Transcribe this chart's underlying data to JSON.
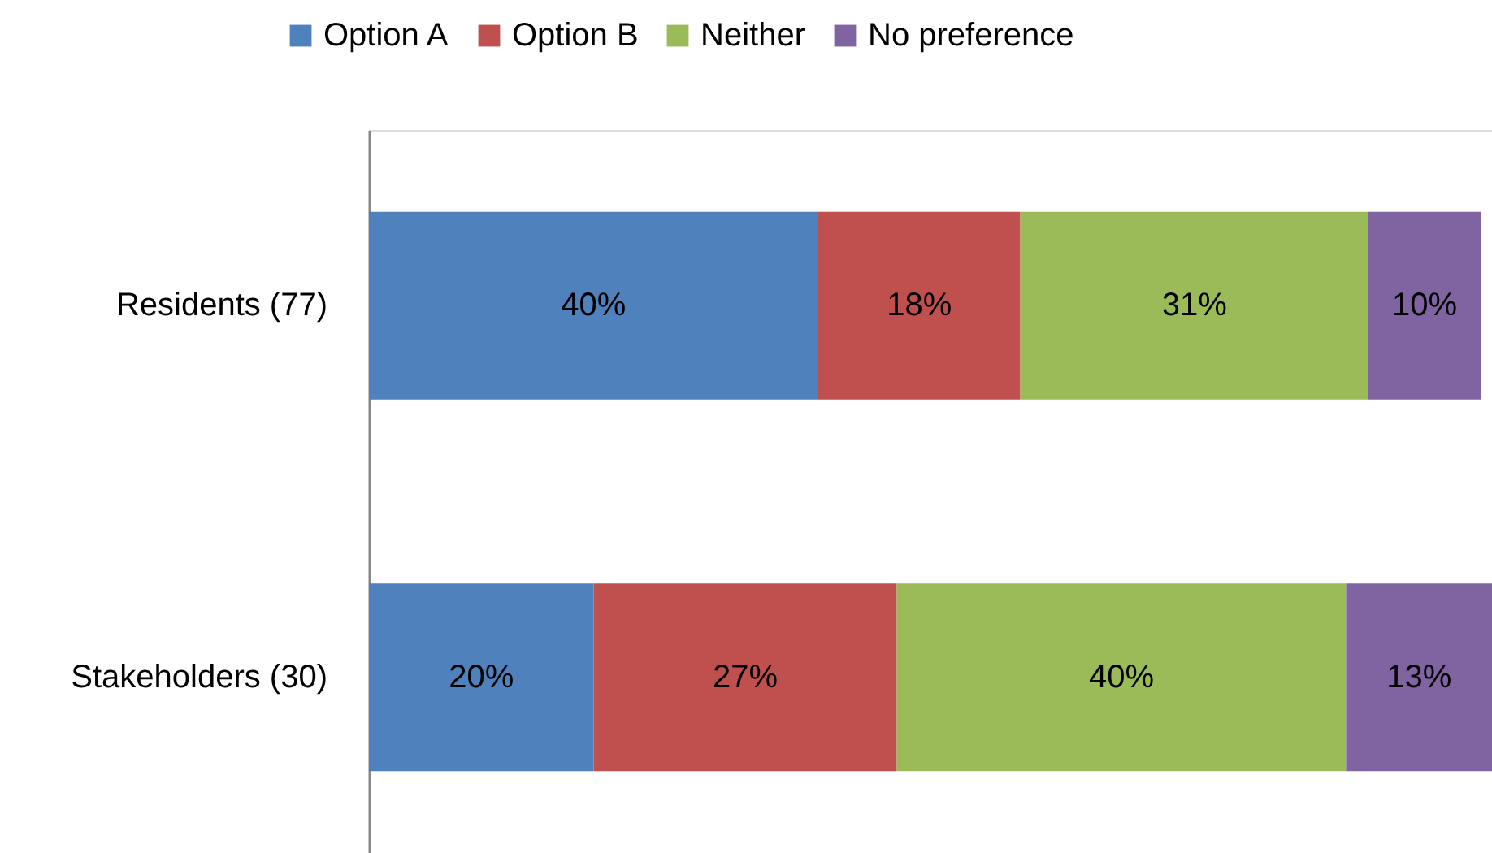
{
  "chart_data": {
    "type": "bar",
    "orientation": "horizontal",
    "stacked": true,
    "legend": "top",
    "categories": [
      "Residents (77)",
      "Stakeholders (30)"
    ],
    "series": [
      {
        "name": "Option A",
        "color": "#4f81bd",
        "values": [
          40,
          20
        ],
        "value_labels": [
          "40%",
          "20%"
        ]
      },
      {
        "name": "Option B",
        "color": "#c0504d",
        "values": [
          18,
          27
        ],
        "value_labels": [
          "18%",
          "27%"
        ]
      },
      {
        "name": "Neither",
        "color": "#9bbb59",
        "values": [
          31,
          40
        ],
        "value_labels": [
          "31%",
          "40%"
        ]
      },
      {
        "name": "No preference",
        "color": "#8064a2",
        "values": [
          10,
          13
        ],
        "value_labels": [
          "10%",
          "13%"
        ]
      }
    ]
  }
}
